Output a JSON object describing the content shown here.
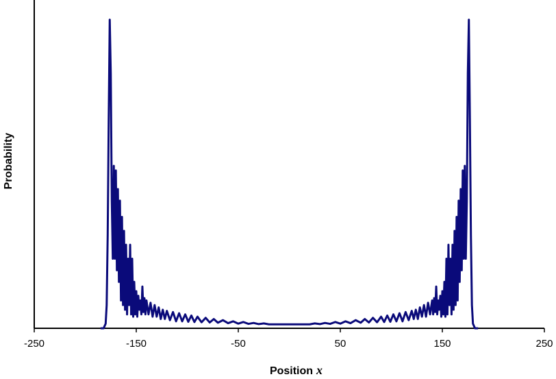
{
  "chart_data": {
    "type": "line",
    "title": "",
    "xlabel": "Position",
    "xlabel_var": "x",
    "ylabel": "Probability",
    "xlim": [
      -250,
      250
    ],
    "ylim": [
      0,
      1.35
    ],
    "xticks": [
      -250,
      -150,
      -50,
      50,
      150,
      250
    ],
    "xtick_labels": [
      "-250",
      "-150",
      "-50",
      "50",
      "150",
      "250"
    ],
    "yticks_visible": false,
    "grid": false,
    "legend": "none",
    "series": [
      {
        "color": "#0a0a7a",
        "x": [
          -185,
          -182,
          -180,
          -179,
          -178,
          -177,
          -176,
          -175,
          -174,
          -173,
          -172,
          -171,
          -170,
          -169,
          -168,
          -167,
          -166,
          -165,
          -164,
          -163,
          -162,
          -161,
          -160,
          -159,
          -158,
          -157,
          -156,
          -155,
          -154,
          -153,
          -152,
          -151,
          -150,
          -149,
          -148,
          -147,
          -146,
          -145,
          -144,
          -143,
          -142,
          -141,
          -140,
          -138,
          -136,
          -134,
          -132,
          -130,
          -128,
          -126,
          -124,
          -122,
          -120,
          -117,
          -114,
          -111,
          -108,
          -105,
          -102,
          -99,
          -96,
          -93,
          -90,
          -86,
          -82,
          -78,
          -74,
          -70,
          -65,
          -60,
          -55,
          -50,
          -45,
          -40,
          -35,
          -30,
          -25,
          -20,
          20,
          25,
          30,
          35,
          40,
          45,
          50,
          55,
          60,
          65,
          70,
          74,
          78,
          82,
          86,
          90,
          93,
          96,
          99,
          102,
          105,
          108,
          111,
          114,
          117,
          120,
          122,
          124,
          126,
          128,
          130,
          132,
          134,
          136,
          138,
          140,
          141,
          142,
          143,
          144,
          145,
          146,
          147,
          148,
          149,
          150,
          151,
          152,
          153,
          154,
          155,
          156,
          157,
          158,
          159,
          160,
          161,
          162,
          163,
          164,
          165,
          166,
          167,
          168,
          169,
          170,
          171,
          172,
          173,
          174,
          175,
          176,
          177,
          178,
          179,
          180,
          182,
          185
        ],
        "y": [
          0,
          0,
          0.02,
          0.1,
          0.4,
          0.9,
          1.33,
          1.1,
          0.55,
          0.3,
          0.7,
          0.3,
          0.68,
          0.25,
          0.6,
          0.2,
          0.55,
          0.12,
          0.48,
          0.1,
          0.42,
          0.08,
          0.36,
          0.06,
          0.3,
          0.1,
          0.36,
          0.06,
          0.3,
          0.05,
          0.2,
          0.06,
          0.16,
          0.05,
          0.14,
          0.08,
          0.12,
          0.06,
          0.18,
          0.07,
          0.13,
          0.06,
          0.12,
          0.06,
          0.11,
          0.05,
          0.1,
          0.05,
          0.09,
          0.04,
          0.08,
          0.04,
          0.075,
          0.035,
          0.07,
          0.03,
          0.065,
          0.03,
          0.06,
          0.028,
          0.055,
          0.027,
          0.05,
          0.026,
          0.045,
          0.025,
          0.04,
          0.024,
          0.035,
          0.022,
          0.03,
          0.02,
          0.027,
          0.019,
          0.023,
          0.018,
          0.021,
          0.017,
          0.017,
          0.021,
          0.018,
          0.023,
          0.019,
          0.027,
          0.02,
          0.03,
          0.022,
          0.035,
          0.024,
          0.04,
          0.025,
          0.045,
          0.026,
          0.05,
          0.027,
          0.055,
          0.028,
          0.06,
          0.03,
          0.065,
          0.03,
          0.07,
          0.035,
          0.075,
          0.04,
          0.08,
          0.04,
          0.09,
          0.05,
          0.1,
          0.05,
          0.11,
          0.06,
          0.12,
          0.06,
          0.13,
          0.07,
          0.18,
          0.06,
          0.12,
          0.08,
          0.14,
          0.05,
          0.16,
          0.06,
          0.2,
          0.05,
          0.3,
          0.06,
          0.36,
          0.1,
          0.3,
          0.06,
          0.36,
          0.08,
          0.42,
          0.1,
          0.48,
          0.12,
          0.55,
          0.2,
          0.6,
          0.25,
          0.68,
          0.3,
          0.7,
          0.3,
          0.55,
          1.1,
          1.33,
          0.9,
          0.4,
          0.1,
          0.02,
          0,
          0
        ]
      }
    ]
  }
}
